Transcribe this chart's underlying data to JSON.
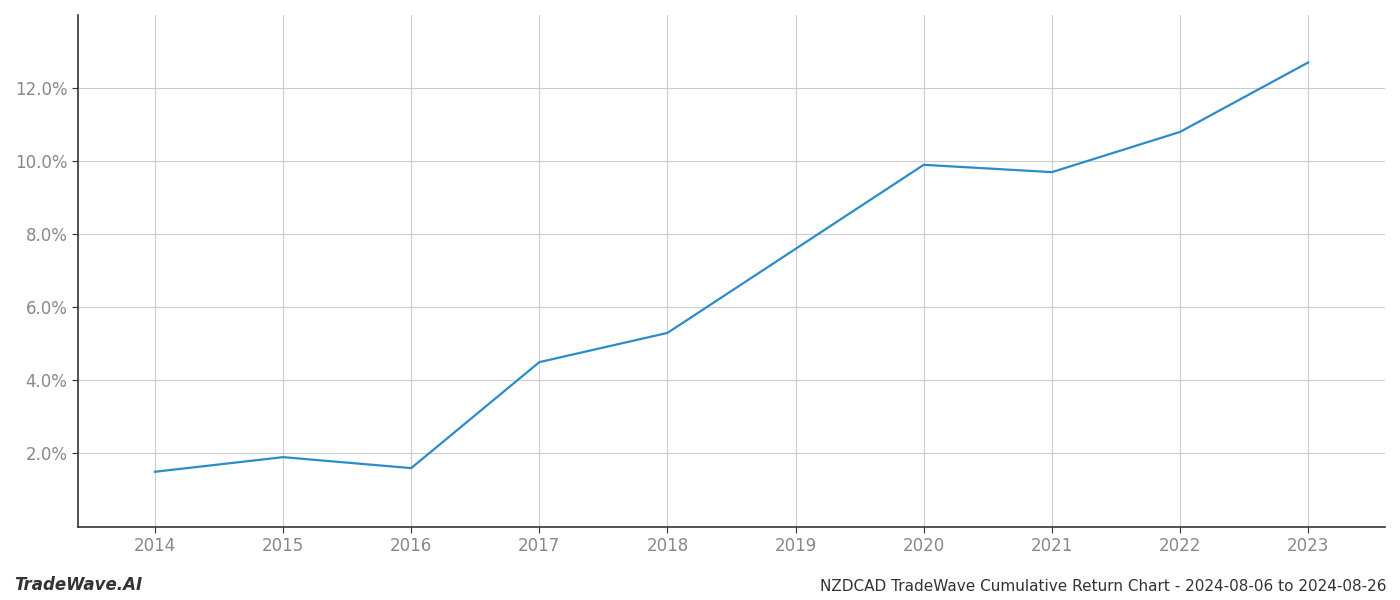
{
  "x_years": [
    2014,
    2015,
    2016,
    2017,
    2018,
    2019,
    2020,
    2021,
    2022,
    2023
  ],
  "y_values": [
    0.015,
    0.019,
    0.016,
    0.045,
    0.053,
    0.076,
    0.099,
    0.097,
    0.108,
    0.127
  ],
  "line_color": "#2a8cc8",
  "line_width": 1.6,
  "title": "NZDCAD TradeWave Cumulative Return Chart - 2024-08-06 to 2024-08-26",
  "watermark": "TradeWave.AI",
  "ylim": [
    0.0,
    0.14
  ],
  "yticks": [
    0.02,
    0.04,
    0.06,
    0.08,
    0.1,
    0.12
  ],
  "ytick_labels": [
    "2.0%",
    "4.0%",
    "6.0%",
    "8.0%",
    "10.0%",
    "12.0%"
  ],
  "xticks": [
    2014,
    2015,
    2016,
    2017,
    2018,
    2019,
    2020,
    2021,
    2022,
    2023
  ],
  "background_color": "#ffffff",
  "grid_color": "#cccccc",
  "axis_label_color": "#888888",
  "spine_color": "#333333",
  "title_color": "#333333",
  "watermark_color": "#333333",
  "title_fontsize": 11,
  "tick_fontsize": 12,
  "watermark_fontsize": 12
}
